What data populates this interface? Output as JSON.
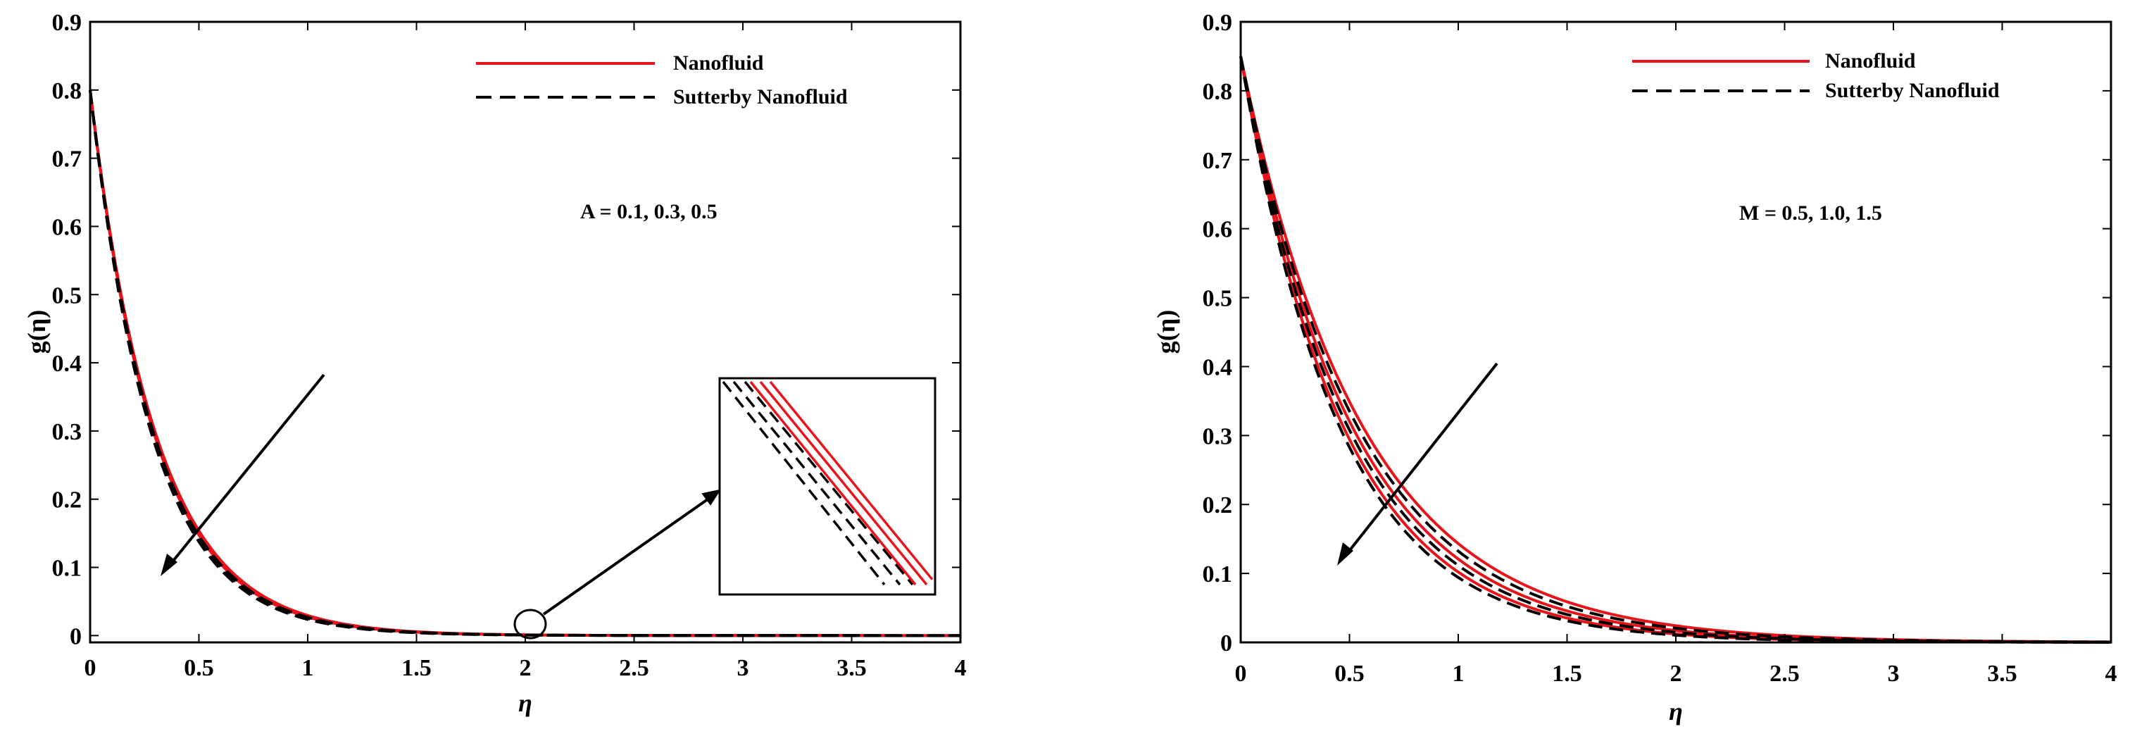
{
  "chart_data": [
    {
      "type": "line",
      "xlabel": "η",
      "ylabel": "g(η)",
      "xlim": [
        0,
        4
      ],
      "ylim": [
        -0.01,
        0.9
      ],
      "x_ticks": [
        "0",
        "0.5",
        "1",
        "1.5",
        "2",
        "2.5",
        "3",
        "3.5",
        "4"
      ],
      "y_ticks": [
        "0",
        "0.1",
        "0.2",
        "0.3",
        "0.4",
        "0.5",
        "0.6",
        "0.7",
        "0.8",
        "0.9"
      ],
      "legend": [
        "Nanofluid",
        "Sutterby Nanofluid"
      ],
      "legend_position": "top-right",
      "annotation": "A = 0.1, 0.3, 0.5",
      "arrow_direction": "increasing parameter decreases g(η)",
      "inset": "zoom near η = 2",
      "series": [
        {
          "name": "Nanofluid",
          "color": "#e8141b",
          "dash": "solid",
          "g0": 0.8,
          "decay": [
            3.3,
            3.34,
            3.38
          ]
        },
        {
          "name": "Sutterby Nanofluid",
          "color": "#000000",
          "dash": "dashed",
          "g0": 0.8,
          "decay": [
            3.4,
            3.46,
            3.52
          ]
        }
      ]
    },
    {
      "type": "line",
      "xlabel": "η",
      "ylabel": "g(η)",
      "xlim": [
        0,
        4
      ],
      "ylim": [
        0,
        0.9
      ],
      "x_ticks": [
        "0",
        "0.5",
        "1",
        "1.5",
        "2",
        "2.5",
        "3",
        "3.5",
        "4"
      ],
      "y_ticks": [
        "0",
        "0.1",
        "0.2",
        "0.3",
        "0.4",
        "0.5",
        "0.6",
        "0.7",
        "0.8",
        "0.9"
      ],
      "legend": [
        "Nanofluid",
        "Sutterby Nanofluid"
      ],
      "legend_position": "top-right",
      "annotation": "M = 0.5, 1.0, 1.5",
      "arrow_direction": "increasing parameter decreases g(η)",
      "series": [
        {
          "name": "Nanofluid",
          "color": "#e8141b",
          "dash": "solid",
          "g0": 0.85,
          "decay": [
            1.78,
            1.95,
            2.12
          ]
        },
        {
          "name": "Sutterby Nanofluid",
          "color": "#000000",
          "dash": "dashed",
          "g0": 0.85,
          "decay": [
            1.86,
            2.03,
            2.2
          ]
        }
      ]
    }
  ]
}
